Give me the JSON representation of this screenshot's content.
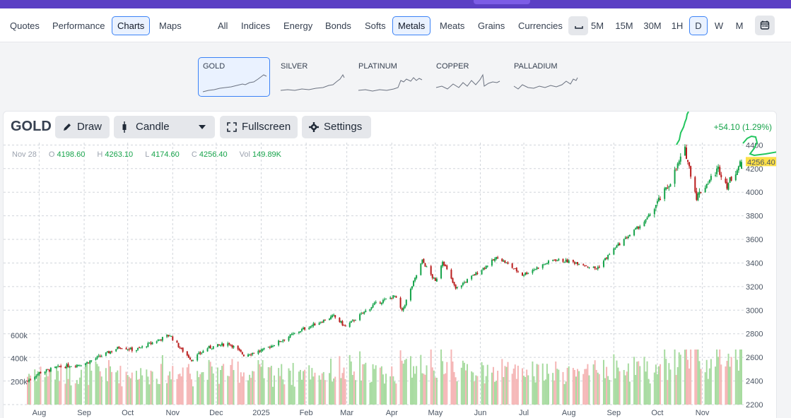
{
  "nav": {
    "tabs": [
      {
        "label": "Quotes",
        "active": false
      },
      {
        "label": "Performance",
        "active": false
      },
      {
        "label": "Charts",
        "active": true
      },
      {
        "label": "Maps",
        "active": false
      }
    ],
    "categories": [
      {
        "label": "All",
        "active": false
      },
      {
        "label": "Indices",
        "active": false
      },
      {
        "label": "Energy",
        "active": false
      },
      {
        "label": "Bonds",
        "active": false
      },
      {
        "label": "Softs",
        "active": false
      },
      {
        "label": "Metals",
        "active": true
      },
      {
        "label": "Meats",
        "active": false
      },
      {
        "label": "Grains",
        "active": false
      },
      {
        "label": "Currencies",
        "active": false
      }
    ],
    "timeframes": [
      {
        "label": "5M",
        "active": false
      },
      {
        "label": "15M",
        "active": false
      },
      {
        "label": "30M",
        "active": false
      },
      {
        "label": "1H",
        "active": false
      },
      {
        "label": "D",
        "active": true
      },
      {
        "label": "W",
        "active": false
      },
      {
        "label": "M",
        "active": false
      }
    ]
  },
  "thumbnails": [
    {
      "label": "GOLD",
      "active": true
    },
    {
      "label": "SILVER",
      "active": false
    },
    {
      "label": "PLATINUM",
      "active": false
    },
    {
      "label": "COPPER",
      "active": false
    },
    {
      "label": "PALLADIUM",
      "active": false
    }
  ],
  "toolbar": {
    "symbol": "GOLD",
    "draw_label": "Draw",
    "chart_type_label": "Candle",
    "fullscreen_label": "Fullscreen",
    "settings_label": "Settings"
  },
  "quote": {
    "date": "Nov 28",
    "open_key": "O",
    "open": "4198.60",
    "high_key": "H",
    "high": "4263.10",
    "low_key": "L",
    "low": "4174.60",
    "close_key": "C",
    "close": "4256.40",
    "vol_key": "Vol",
    "volume": "149.89K",
    "change": "+54.10 (1.29%)",
    "last_price_label": "4256.40"
  },
  "colors": {
    "up": "#16a34a",
    "down": "#b91c1c",
    "vol_up": "#a7dba0",
    "vol_down": "#f5b5b5",
    "accent": "#3b82f6",
    "brand": "#5b3fc4",
    "last_price_bg": "#fde047"
  },
  "chart_data": {
    "type": "candlestick",
    "title": "",
    "x_ticks": [
      "Aug",
      "Sep",
      "Oct",
      "Nov",
      "Dec",
      "2025",
      "Feb",
      "Mar",
      "Apr",
      "May",
      "Jun",
      "Jul",
      "Aug",
      "Sep",
      "Oct",
      "Nov"
    ],
    "y_ticks": [
      2200,
      2400,
      2600,
      2800,
      3000,
      3200,
      3400,
      3600,
      3800,
      4000,
      4200,
      4400
    ],
    "ylim": [
      2200,
      4420
    ],
    "volume_ticks": [
      "200k",
      "400k",
      "600k"
    ],
    "volume_ylim": [
      0,
      620000
    ],
    "grid": true,
    "anchors": [
      {
        "date": "2024-07-24",
        "close": 2400
      },
      {
        "date": "2024-08-01",
        "close": 2470
      },
      {
        "date": "2024-08-15",
        "close": 2520
      },
      {
        "date": "2024-09-01",
        "close": 2545
      },
      {
        "date": "2024-09-26",
        "close": 2690
      },
      {
        "date": "2024-10-06",
        "close": 2660
      },
      {
        "date": "2024-10-30",
        "close": 2790
      },
      {
        "date": "2024-11-06",
        "close": 2680
      },
      {
        "date": "2024-11-14",
        "close": 2580
      },
      {
        "date": "2024-11-25",
        "close": 2680
      },
      {
        "date": "2024-12-10",
        "close": 2720
      },
      {
        "date": "2024-12-20",
        "close": 2620
      },
      {
        "date": "2025-01-02",
        "close": 2660
      },
      {
        "date": "2025-01-30",
        "close": 2840
      },
      {
        "date": "2025-02-20",
        "close": 2950
      },
      {
        "date": "2025-02-28",
        "close": 2860
      },
      {
        "date": "2025-03-20",
        "close": 3050
      },
      {
        "date": "2025-04-03",
        "close": 3120
      },
      {
        "date": "2025-04-08",
        "close": 2990
      },
      {
        "date": "2025-04-22",
        "close": 3420
      },
      {
        "date": "2025-05-01",
        "close": 3240
      },
      {
        "date": "2025-05-06",
        "close": 3420
      },
      {
        "date": "2025-05-15",
        "close": 3180
      },
      {
        "date": "2025-06-13",
        "close": 3450
      },
      {
        "date": "2025-06-30",
        "close": 3300
      },
      {
        "date": "2025-07-22",
        "close": 3430
      },
      {
        "date": "2025-08-08",
        "close": 3400
      },
      {
        "date": "2025-08-20",
        "close": 3350
      },
      {
        "date": "2025-09-02",
        "close": 3530
      },
      {
        "date": "2025-09-23",
        "close": 3760
      },
      {
        "date": "2025-10-08",
        "close": 4040
      },
      {
        "date": "2025-10-20",
        "close": 4360
      },
      {
        "date": "2025-10-28",
        "close": 3960
      },
      {
        "date": "2025-11-12",
        "close": 4200
      },
      {
        "date": "2025-11-18",
        "close": 4060
      },
      {
        "date": "2025-11-28",
        "close": 4256.4
      }
    ]
  }
}
